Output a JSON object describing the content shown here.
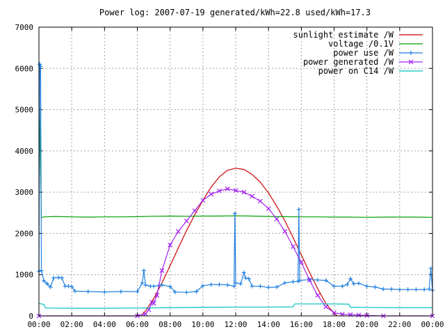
{
  "chart_data": {
    "type": "line",
    "title": "Power log: 2007-07-19 generated/kWh=22.8 used/kWh=17.3",
    "xlabel": "",
    "ylabel": "",
    "ylim": [
      0,
      7000
    ],
    "xlim_hours": [
      0,
      24
    ],
    "grid": true,
    "legend_position": "top-right",
    "y_ticks": [
      "0",
      "1000",
      "2000",
      "3000",
      "4000",
      "5000",
      "6000",
      "7000"
    ],
    "x_ticks": [
      "00:00",
      "02:00",
      "04:00",
      "06:00",
      "08:00",
      "10:00",
      "12:00",
      "14:00",
      "16:00",
      "18:00",
      "20:00",
      "22:00",
      "00:00"
    ],
    "series": [
      {
        "name": "sunlight estimate /W",
        "color": "#cc0000",
        "marker": "none",
        "points": [
          [
            6.2,
            0
          ],
          [
            6.5,
            120
          ],
          [
            7,
            420
          ],
          [
            7.5,
            800
          ],
          [
            8,
            1220
          ],
          [
            8.5,
            1650
          ],
          [
            9,
            2070
          ],
          [
            9.5,
            2450
          ],
          [
            10,
            2800
          ],
          [
            10.5,
            3120
          ],
          [
            11,
            3370
          ],
          [
            11.5,
            3530
          ],
          [
            12,
            3580
          ],
          [
            12.5,
            3550
          ],
          [
            13,
            3430
          ],
          [
            13.5,
            3240
          ],
          [
            14,
            2980
          ],
          [
            14.5,
            2660
          ],
          [
            15,
            2300
          ],
          [
            15.5,
            1900
          ],
          [
            16,
            1480
          ],
          [
            16.5,
            1060
          ],
          [
            17,
            660
          ],
          [
            17.5,
            300
          ],
          [
            18,
            60
          ],
          [
            18.2,
            0
          ]
        ]
      },
      {
        "name": "voltage /0.1V",
        "color": "#00a000",
        "marker": "none",
        "points": [
          [
            0,
            6100
          ],
          [
            0.1,
            3500
          ],
          [
            0.15,
            2380
          ],
          [
            0.3,
            2400
          ],
          [
            1,
            2410
          ],
          [
            2,
            2400
          ],
          [
            3,
            2395
          ],
          [
            4,
            2400
          ],
          [
            5,
            2400
          ],
          [
            6,
            2405
          ],
          [
            7,
            2415
          ],
          [
            8,
            2420
          ],
          [
            9,
            2415
          ],
          [
            10,
            2420
          ],
          [
            11,
            2420
          ],
          [
            12,
            2425
          ],
          [
            13,
            2420
          ],
          [
            14,
            2410
          ],
          [
            15,
            2405
          ],
          [
            16,
            2400
          ],
          [
            17,
            2400
          ],
          [
            18,
            2395
          ],
          [
            19,
            2395
          ],
          [
            20,
            2390
          ],
          [
            21,
            2395
          ],
          [
            22,
            2395
          ],
          [
            23,
            2395
          ],
          [
            24,
            2390
          ]
        ]
      },
      {
        "name": "power use /W",
        "color": "#1f7fdf",
        "marker": "plus",
        "points": [
          [
            0,
            1080
          ],
          [
            0.05,
            6100
          ],
          [
            0.1,
            6050
          ],
          [
            0.15,
            1100
          ],
          [
            0.3,
            850
          ],
          [
            0.5,
            780
          ],
          [
            0.7,
            700
          ],
          [
            0.9,
            920
          ],
          [
            1.2,
            930
          ],
          [
            1.4,
            920
          ],
          [
            1.6,
            720
          ],
          [
            1.8,
            720
          ],
          [
            2,
            710
          ],
          [
            2.2,
            600
          ],
          [
            3,
            590
          ],
          [
            4,
            580
          ],
          [
            5,
            590
          ],
          [
            6,
            590
          ],
          [
            6.3,
            800
          ],
          [
            6.4,
            1100
          ],
          [
            6.5,
            750
          ],
          [
            6.8,
            720
          ],
          [
            7,
            720
          ],
          [
            7.3,
            730
          ],
          [
            7.5,
            750
          ],
          [
            8,
            710
          ],
          [
            8.3,
            580
          ],
          [
            9,
            570
          ],
          [
            9.6,
            590
          ],
          [
            10,
            730
          ],
          [
            10.5,
            760
          ],
          [
            11,
            760
          ],
          [
            11.5,
            750
          ],
          [
            11.9,
            720
          ],
          [
            11.95,
            2480
          ],
          [
            12,
            800
          ],
          [
            12.3,
            780
          ],
          [
            12.5,
            1050
          ],
          [
            12.6,
            920
          ],
          [
            12.8,
            900
          ],
          [
            13,
            720
          ],
          [
            13.5,
            720
          ],
          [
            14,
            690
          ],
          [
            14.5,
            700
          ],
          [
            15,
            800
          ],
          [
            15.5,
            830
          ],
          [
            15.8,
            840
          ],
          [
            15.85,
            2580
          ],
          [
            15.9,
            860
          ],
          [
            16.5,
            880
          ],
          [
            17,
            870
          ],
          [
            17.5,
            860
          ],
          [
            18,
            720
          ],
          [
            18.5,
            720
          ],
          [
            18.8,
            760
          ],
          [
            19,
            900
          ],
          [
            19.2,
            780
          ],
          [
            19.5,
            790
          ],
          [
            20,
            720
          ],
          [
            20.5,
            700
          ],
          [
            21,
            650
          ],
          [
            21.5,
            650
          ],
          [
            22,
            640
          ],
          [
            22.5,
            640
          ],
          [
            23,
            640
          ],
          [
            23.5,
            640
          ],
          [
            23.8,
            650
          ],
          [
            23.9,
            1150
          ],
          [
            24,
            620
          ]
        ]
      },
      {
        "name": "power generated /W",
        "color": "#a020f0",
        "marker": "x",
        "points": [
          [
            0,
            0
          ],
          [
            6,
            0
          ],
          [
            6.5,
            50
          ],
          [
            6.7,
            150
          ],
          [
            6.9,
            330
          ],
          [
            7,
            300
          ],
          [
            7.2,
            500
          ],
          [
            7.5,
            1100
          ],
          [
            8,
            1720
          ],
          [
            8.5,
            2050
          ],
          [
            9,
            2300
          ],
          [
            9.5,
            2550
          ],
          [
            10,
            2800
          ],
          [
            10.5,
            2950
          ],
          [
            11,
            3030
          ],
          [
            11.5,
            3080
          ],
          [
            12,
            3040
          ],
          [
            12.5,
            3000
          ],
          [
            13,
            2900
          ],
          [
            13.5,
            2780
          ],
          [
            14,
            2600
          ],
          [
            14.5,
            2350
          ],
          [
            15,
            2050
          ],
          [
            15.5,
            1680
          ],
          [
            16,
            1300
          ],
          [
            16.5,
            870
          ],
          [
            17,
            500
          ],
          [
            17.5,
            220
          ],
          [
            18,
            80
          ],
          [
            18.5,
            40
          ],
          [
            19,
            30
          ],
          [
            19.5,
            20
          ],
          [
            20,
            10
          ],
          [
            21,
            0
          ],
          [
            24,
            0
          ]
        ]
      },
      {
        "name": "power on C14 /W",
        "color": "#00c0c0",
        "marker": "none",
        "points": [
          [
            0,
            300
          ],
          [
            0.3,
            280
          ],
          [
            0.4,
            190
          ],
          [
            2,
            185
          ],
          [
            4,
            185
          ],
          [
            6,
            190
          ],
          [
            8,
            200
          ],
          [
            10,
            210
          ],
          [
            12,
            215
          ],
          [
            14,
            215
          ],
          [
            15.5,
            220
          ],
          [
            15.6,
            290
          ],
          [
            17,
            290
          ],
          [
            18,
            290
          ],
          [
            18.9,
            285
          ],
          [
            19,
            210
          ],
          [
            20,
            205
          ],
          [
            22,
            200
          ],
          [
            24,
            200
          ]
        ]
      }
    ]
  },
  "legend": [
    {
      "label": "sunlight estimate /W",
      "color": "#cc0000",
      "marker": "none"
    },
    {
      "label": "voltage /0.1V",
      "color": "#00a000",
      "marker": "none"
    },
    {
      "label": "power use /W",
      "color": "#1f7fdf",
      "marker": "plus"
    },
    {
      "label": "power generated /W",
      "color": "#a020f0",
      "marker": "x"
    },
    {
      "label": "power on C14 /W",
      "color": "#00c0c0",
      "marker": "none"
    }
  ]
}
